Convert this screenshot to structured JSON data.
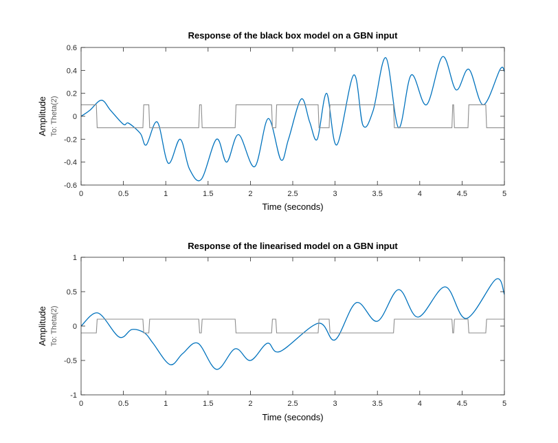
{
  "chart_data": [
    {
      "type": "line",
      "title": "Response of the black box model on a GBN input",
      "xlabel": "Time (seconds)",
      "ylabel": "Amplitude",
      "ysublabel": "To: Theta(2)",
      "xlim": [
        0,
        5
      ],
      "ylim": [
        -0.6,
        0.6
      ],
      "xticks": [
        0,
        0.5,
        1,
        1.5,
        2,
        2.5,
        3,
        3.5,
        4,
        4.5,
        5
      ],
      "xtick_labels": [
        "0",
        "0.5",
        "1",
        "1.5",
        "2",
        "2.5",
        "3",
        "3.5",
        "4",
        "4.5",
        "5"
      ],
      "yticks": [
        -0.6,
        -0.4,
        -0.2,
        0,
        0.2,
        0.4,
        0.6
      ],
      "ytick_labels": [
        "-0.6",
        "-0.4",
        "-0.2",
        "0",
        "0.2",
        "0.4",
        "0.6"
      ],
      "grid": false,
      "series": [
        {
          "color": "#0072BD",
          "x": [
            0,
            0.1,
            0.24,
            0.35,
            0.5,
            0.56,
            0.7,
            0.77,
            0.9,
            1.03,
            1.17,
            1.28,
            1.42,
            1.6,
            1.72,
            1.86,
            2.05,
            2.21,
            2.36,
            2.45,
            2.6,
            2.7,
            2.79,
            2.9,
            3.02,
            3.22,
            3.33,
            3.45,
            3.6,
            3.75,
            3.9,
            4.08,
            4.27,
            4.43,
            4.58,
            4.75,
            4.95,
            5.0
          ],
          "y": [
            0,
            0.05,
            0.14,
            0.05,
            -0.07,
            -0.06,
            -0.15,
            -0.25,
            -0.05,
            -0.41,
            -0.2,
            -0.46,
            -0.55,
            -0.2,
            -0.4,
            -0.16,
            -0.44,
            -0.02,
            -0.38,
            -0.2,
            0.15,
            -0.05,
            -0.2,
            0.2,
            -0.25,
            0.36,
            -0.08,
            0.05,
            0.51,
            -0.1,
            0.36,
            0.1,
            0.52,
            0.23,
            0.41,
            0.1,
            0.41,
            0.39
          ]
        },
        {
          "color": "#8c8c8c",
          "x": [
            0,
            0.18,
            0.19,
            0.73,
            0.74,
            0.8,
            0.81,
            1.39,
            1.4,
            1.42,
            1.43,
            1.82,
            1.83,
            2.25,
            2.26,
            2.3,
            2.31,
            2.8,
            2.81,
            2.93,
            2.94,
            3.69,
            3.7,
            4.38,
            4.39,
            4.4,
            4.41,
            4.57,
            4.58,
            4.78,
            4.79,
            5.0
          ],
          "y": [
            0.1,
            0.1,
            -0.1,
            -0.1,
            0.1,
            0.1,
            -0.1,
            -0.1,
            0.1,
            0.1,
            -0.1,
            -0.1,
            0.1,
            0.1,
            -0.1,
            -0.1,
            0.1,
            0.1,
            -0.1,
            -0.1,
            0.1,
            0.1,
            -0.1,
            -0.1,
            0.1,
            0.1,
            -0.1,
            -0.1,
            0.1,
            0.1,
            -0.1,
            -0.1
          ]
        }
      ]
    },
    {
      "type": "line",
      "title": "Response of the linearised model on a GBN input",
      "xlabel": "Time (seconds)",
      "ylabel": "Amplitude",
      "ysublabel": "To: Theta(2)",
      "xlim": [
        0,
        5
      ],
      "ylim": [
        -1,
        1
      ],
      "xticks": [
        0,
        0.5,
        1,
        1.5,
        2,
        2.5,
        3,
        3.5,
        4,
        4.5,
        5
      ],
      "xtick_labels": [
        "0",
        "0.5",
        "1",
        "1.5",
        "2",
        "2.5",
        "3",
        "3.5",
        "4",
        "4.5",
        "5"
      ],
      "yticks": [
        -1,
        -0.5,
        0,
        0.5,
        1
      ],
      "ytick_labels": [
        "-1",
        "-0.5",
        "0",
        "0.5",
        "1"
      ],
      "grid": false,
      "series": [
        {
          "color": "#0072BD",
          "x": [
            0,
            0.2,
            0.45,
            0.6,
            0.75,
            0.85,
            1.05,
            1.2,
            1.38,
            1.6,
            1.82,
            2.0,
            2.2,
            2.35,
            2.8,
            3.0,
            3.25,
            3.5,
            3.75,
            3.98,
            4.3,
            4.55,
            4.9,
            5.0
          ],
          "y": [
            0,
            0.19,
            -0.16,
            -0.05,
            -0.1,
            -0.25,
            -0.56,
            -0.4,
            -0.25,
            -0.63,
            -0.33,
            -0.5,
            -0.25,
            -0.37,
            0.04,
            -0.2,
            0.34,
            0.07,
            0.53,
            0.13,
            0.57,
            0.11,
            0.68,
            0.46
          ]
        },
        {
          "color": "#8c8c8c",
          "x": [
            0,
            0.18,
            0.19,
            0.73,
            0.74,
            0.8,
            0.81,
            1.39,
            1.4,
            1.42,
            1.43,
            1.82,
            1.83,
            2.25,
            2.26,
            2.3,
            2.31,
            2.8,
            2.81,
            2.93,
            2.94,
            3.69,
            3.7,
            4.38,
            4.39,
            4.4,
            4.41,
            4.57,
            4.58,
            4.78,
            4.79,
            5.0
          ],
          "y": [
            -0.1,
            -0.1,
            0.1,
            0.1,
            -0.1,
            -0.1,
            0.1,
            0.1,
            -0.1,
            -0.1,
            0.1,
            0.1,
            -0.1,
            -0.1,
            0.1,
            0.1,
            -0.1,
            -0.1,
            0.1,
            0.1,
            -0.1,
            -0.1,
            0.1,
            0.1,
            -0.1,
            -0.1,
            0.1,
            0.1,
            -0.1,
            -0.1,
            0.1,
            0.1
          ]
        }
      ]
    }
  ]
}
